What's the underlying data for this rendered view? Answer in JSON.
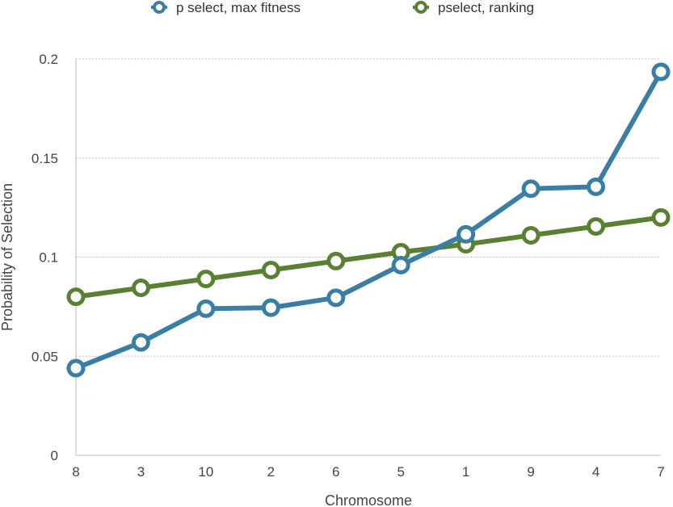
{
  "chart_data": {
    "type": "line",
    "categories": [
      "8",
      "3",
      "10",
      "2",
      "6",
      "5",
      "1",
      "9",
      "4",
      "7"
    ],
    "series": [
      {
        "name": "p select, max fitness",
        "color": "#3a7fa3",
        "values": [
          0.044,
          0.057,
          0.074,
          0.0745,
          0.0795,
          0.096,
          0.1115,
          0.1345,
          0.1355,
          0.1935
        ]
      },
      {
        "name": "pselect, ranking",
        "color": "#5a8033",
        "values": [
          0.08,
          0.0845,
          0.089,
          0.0935,
          0.098,
          0.1025,
          0.1065,
          0.111,
          0.1155,
          0.12
        ]
      }
    ],
    "xlabel": "Chromosome",
    "ylabel": "Probability of Selection",
    "ylim": [
      0,
      0.2
    ],
    "yticks": [
      {
        "value": 0,
        "label": "0"
      },
      {
        "value": 0.05,
        "label": "0.05"
      },
      {
        "value": 0.1,
        "label": "0.1"
      },
      {
        "value": 0.15,
        "label": "0.15"
      },
      {
        "value": 0.2,
        "label": "0.2"
      }
    ],
    "grid": "horizontal dotted",
    "legend_position": "top"
  }
}
